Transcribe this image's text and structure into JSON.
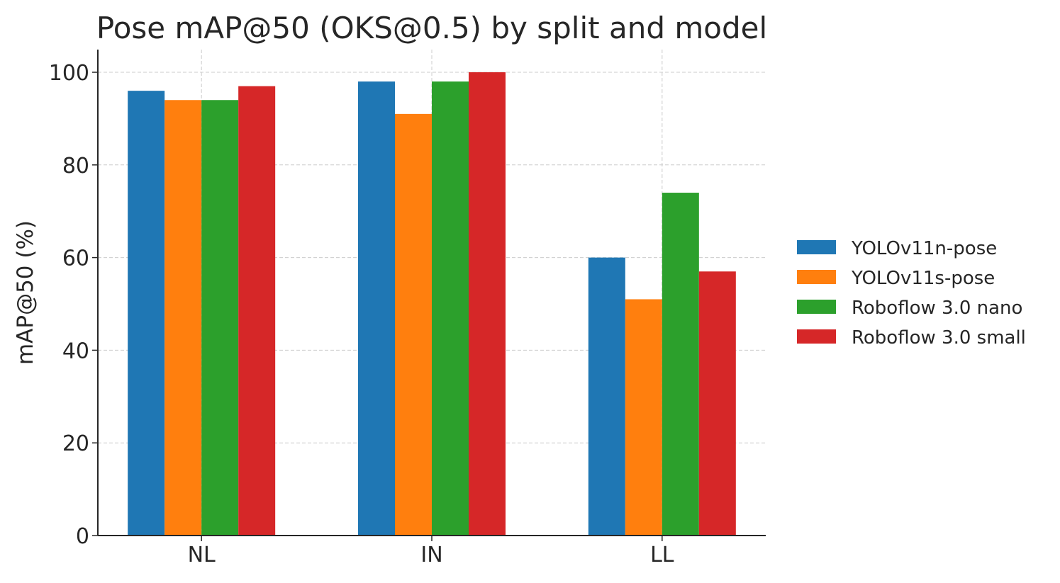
{
  "chart_data": {
    "type": "bar",
    "title": "Pose mAP@50 (OKS@0.5) by split and model",
    "xlabel": "",
    "ylabel": "mAP@50 (%)",
    "categories": [
      "NL",
      "IN",
      "LL"
    ],
    "ylim": [
      0,
      105
    ],
    "yticks": [
      0,
      20,
      40,
      60,
      80,
      100
    ],
    "grid": true,
    "legend_position": "right",
    "series": [
      {
        "name": "YOLOv11n-pose",
        "color": "#1f77b4",
        "values": [
          96,
          98,
          60
        ]
      },
      {
        "name": "YOLOv11s-pose",
        "color": "#ff7f0e",
        "values": [
          94,
          91,
          51
        ]
      },
      {
        "name": "Roboflow 3.0 nano",
        "color": "#2ca02c",
        "values": [
          94,
          98,
          74
        ]
      },
      {
        "name": "Roboflow 3.0 small",
        "color": "#d62728",
        "values": [
          97,
          100,
          57
        ]
      }
    ]
  }
}
